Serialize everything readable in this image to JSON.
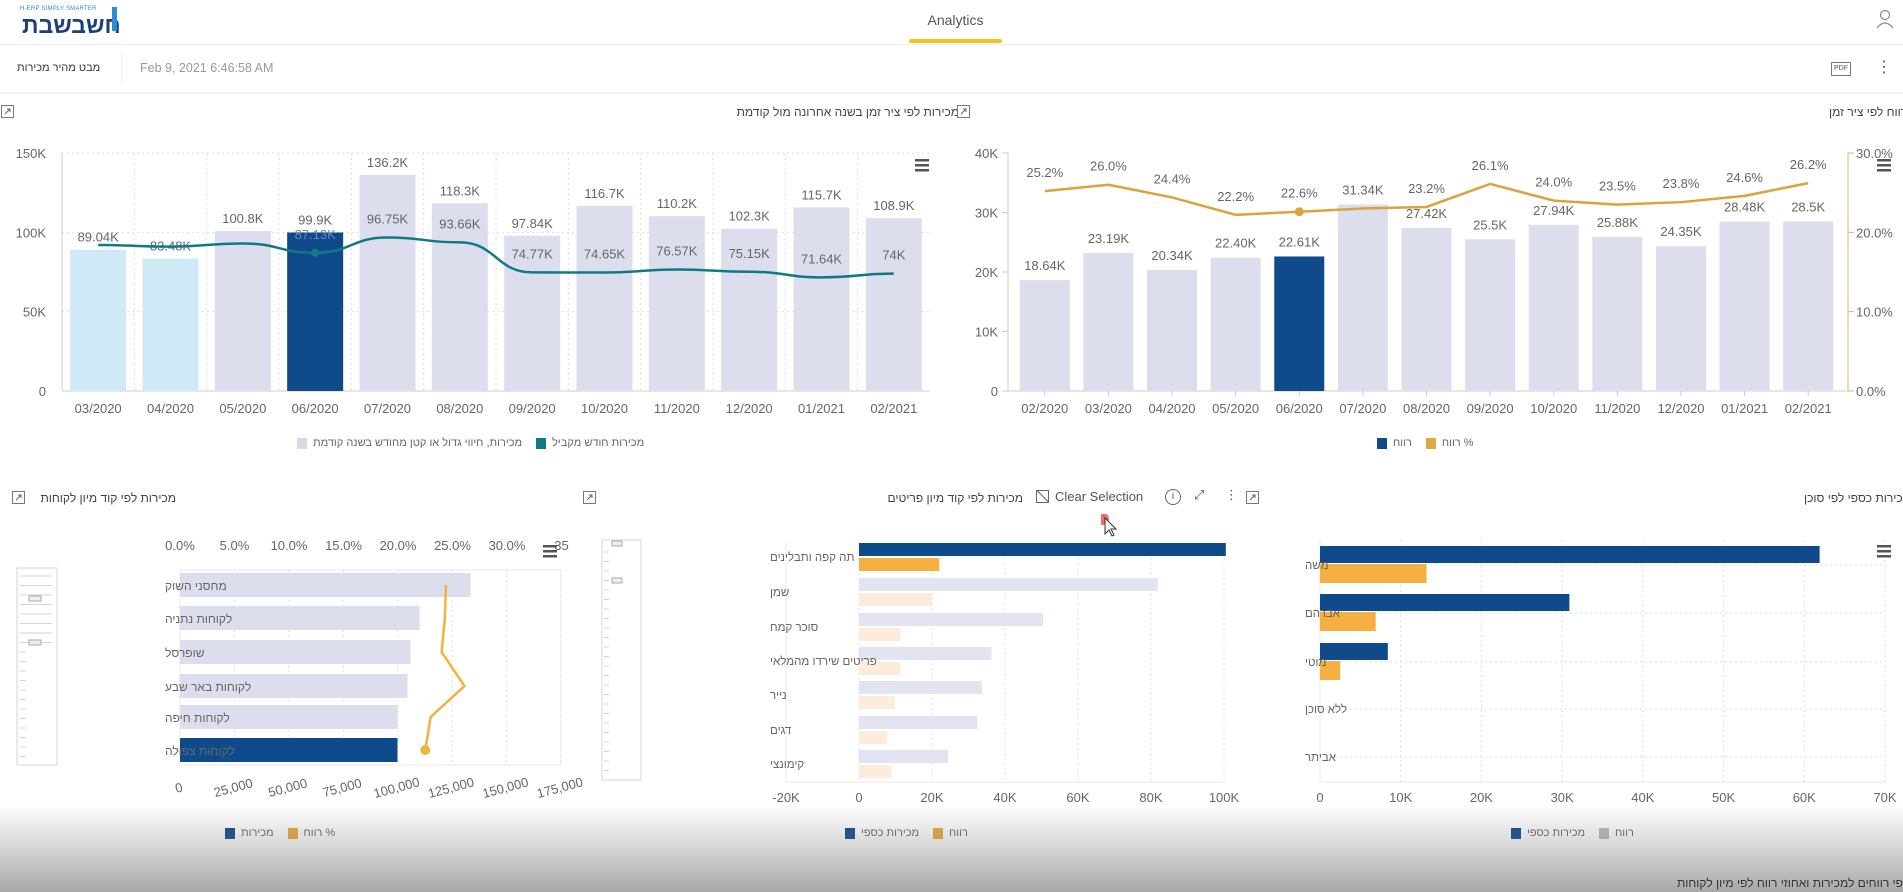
{
  "header": {
    "logo_tagline": "H-ERP SIMPLY SMARTER",
    "logo_text": "חשבשבת",
    "tab": "Analytics",
    "user_icon": "user-icon"
  },
  "toolbar": {
    "view_name": "מבט מהיר מכירות",
    "timestamp": "Feb 9, 2021 6:46:58 AM",
    "pdf_label": "PDF",
    "menu_icon": "kebab-icon"
  },
  "colors": {
    "accent": "#f4c21d",
    "selected_bar": "#0f4a8a",
    "bar_grey": "#dcdeee",
    "bar_light_blue": "#cfe9f6",
    "teal_line": "#0f7a86",
    "orange": "#f5b041",
    "orange_line": "#dba33c"
  },
  "clear_selection": "Clear Selection",
  "bottom_title": "פי רווחים למכירות ואחוזי רווח לפי מיון לקוחות",
  "chart_data": [
    {
      "type": "bar+line",
      "title": "מכירות לפי ציר זמן בשנה אחרונה מול קודמת",
      "categories": [
        "03/2020",
        "04/2020",
        "05/2020",
        "06/2020",
        "07/2020",
        "08/2020",
        "09/2020",
        "10/2020",
        "11/2020",
        "12/2020",
        "01/2021",
        "02/2021"
      ],
      "bar_values": [
        89.04,
        83.48,
        100.8,
        99.9,
        136.2,
        118.3,
        97.84,
        116.7,
        110.2,
        102.3,
        115.7,
        108.9
      ],
      "bar_labels": [
        "89.04K",
        "83.48K",
        "100.8K",
        "99.9K",
        "136.2K",
        "118.3K",
        "97.84K",
        "116.7K",
        "110.2K",
        "102.3K",
        "115.7K",
        "108.9K"
      ],
      "bar_colors": [
        "#cfe9f6",
        "#cfe9f6",
        "#dcdeee",
        "#0f4a8a",
        "#dcdeee",
        "#dcdeee",
        "#dcdeee",
        "#dcdeee",
        "#dcdeee",
        "#dcdeee",
        "#dcdeee",
        "#dcdeee"
      ],
      "line_values": [
        92,
        91,
        93,
        87.13,
        96.75,
        93.66,
        74.77,
        74.65,
        76.57,
        75.15,
        71.64,
        74
      ],
      "line_labels": [
        null,
        null,
        null,
        "87.13K",
        "96.75K",
        "93.66K",
        "74.77K",
        "74.65K",
        "76.57K",
        "75.15K",
        "71.64K",
        "74K"
      ],
      "y_ticks": [
        "0",
        "50K",
        "100K",
        "150K"
      ],
      "ylim": [
        0,
        150
      ],
      "grid": true,
      "legend": [
        "מכירות, חיווי גדול או קטן מחודש בשנה קודמת",
        "מכירות חודש מקביל"
      ],
      "legend_position": "bottom"
    },
    {
      "type": "bar+line",
      "title": "רווח לפי ציר זמן",
      "categories": [
        "02/2020",
        "03/2020",
        "04/2020",
        "05/2020",
        "06/2020",
        "07/2020",
        "08/2020",
        "09/2020",
        "10/2020",
        "11/2020",
        "12/2020",
        "01/2021",
        "02/2021"
      ],
      "bar_values": [
        18.64,
        23.19,
        20.34,
        22.4,
        22.61,
        31.34,
        27.42,
        25.5,
        27.94,
        25.88,
        24.35,
        28.48,
        28.5
      ],
      "bar_labels": [
        "18.64K",
        "23.19K",
        "20.34K",
        "22.40K",
        "22.61K",
        "31.34K",
        "27.42K",
        "25.5K",
        "27.94K",
        "25.88K",
        "24.35K",
        "28.48K",
        "28.5K"
      ],
      "selected_index": 4,
      "line_values": [
        25.2,
        26.0,
        24.4,
        22.2,
        22.6,
        23.0,
        23.2,
        26.1,
        24.0,
        23.5,
        23.8,
        24.6,
        26.2
      ],
      "line_labels": [
        "25.2%",
        "26.0%",
        "24.4%",
        "22.2%",
        "22.6%",
        null,
        "23.2%",
        "26.1%",
        "24.0%",
        "23.5%",
        "23.8%",
        "24.6%",
        "26.2%"
      ],
      "y_ticks": [
        "0",
        "10K",
        "20K",
        "30K",
        "40K"
      ],
      "ylim": [
        0,
        40
      ],
      "y2_ticks": [
        "0.0%",
        "10.0%",
        "20.0%",
        "30.0%"
      ],
      "y2lim": [
        0,
        30
      ],
      "grid": false,
      "legend": [
        "רווח",
        "% רווח"
      ],
      "legend_position": "bottom"
    },
    {
      "type": "horizontal-bar+line",
      "title": "מכירות לפי קוד מיון לקוחות",
      "categories": [
        "מחסני השוק",
        "לקוחות נתניה",
        "שופרסל",
        "לקוחות באר שבע",
        "לקוחות חיפה",
        "לקוחות צפולה"
      ],
      "bar_values": [
        133500,
        110000,
        105900,
        104500,
        99900,
        99900
      ],
      "selected_index": 5,
      "line_values": [
        24.4,
        24.3,
        24.0,
        26.1,
        23.0,
        22.5
      ],
      "x_ticks": [
        "0",
        "25,000",
        "50,000",
        "75,000",
        "100,000",
        "125,000",
        "150,000",
        "175,000"
      ],
      "xlim": [
        0,
        175000
      ],
      "x2_ticks": [
        "0.0%",
        "5.0%",
        "10.0%",
        "15.0%",
        "20.0%",
        "25.0%",
        "30.0%",
        "35"
      ],
      "x2lim": [
        0,
        35
      ],
      "grid": true,
      "legend": [
        "מכירות",
        "% רווח"
      ],
      "legend_position": "bottom"
    },
    {
      "type": "horizontal-bar",
      "title": "מכירות לפי קוד מיון פריטים",
      "categories": [
        "תה קפה ותבלינים",
        "שמן",
        "סוכר קמח",
        "פריטים שירדו מהמלאי",
        "נייר",
        "דגים",
        "קימונצי"
      ],
      "series": [
        {
          "name": "מכירות כספי",
          "values": [
            100.5,
            81.9,
            50.4,
            36.3,
            33.7,
            32.4,
            24.4
          ]
        },
        {
          "name": "רווח",
          "values": [
            22,
            19.9,
            11.3,
            11.3,
            9.8,
            7.7,
            8.9
          ]
        }
      ],
      "selected_index": 0,
      "x_ticks": [
        "-20K",
        "0",
        "20K",
        "40K",
        "60K",
        "80K",
        "100K"
      ],
      "xlim": [
        -20,
        100
      ],
      "grid": true,
      "legend_position": "bottom"
    },
    {
      "type": "horizontal-bar",
      "title": "מכירות כספי לפי סוכן",
      "categories": [
        "משה",
        "אברהם",
        "מוטי",
        "ללא סוכן",
        "אביתר"
      ],
      "series": [
        {
          "name": "מכירות כספי",
          "values": [
            61.9,
            30.9,
            8.4,
            0,
            0
          ]
        },
        {
          "name": "רווח",
          "values": [
            13.2,
            6.9,
            2.5,
            0,
            0
          ]
        }
      ],
      "x_ticks": [
        "0",
        "10K",
        "20K",
        "30K",
        "40K",
        "50K",
        "60K",
        "70K"
      ],
      "xlim": [
        0,
        70
      ],
      "grid": true,
      "legend_position": "bottom"
    }
  ]
}
